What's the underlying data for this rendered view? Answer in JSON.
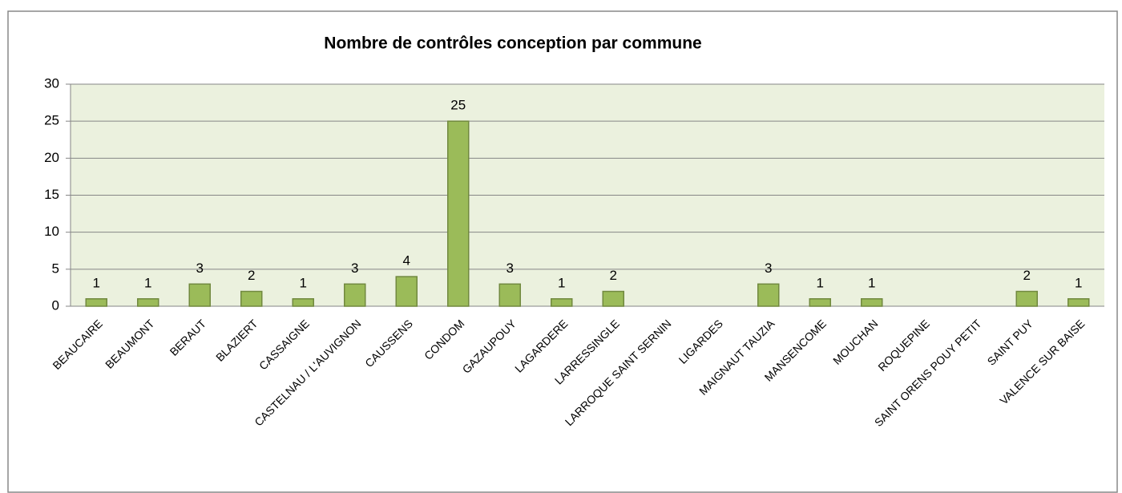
{
  "chart_data": {
    "type": "bar",
    "title": "Nombre de contrôles conception par commune",
    "categories": [
      "BEAUCAIRE",
      "BEAUMONT",
      "BERAUT",
      "BLAZIERT",
      "CASSAIGNE",
      "CASTELNAU / L'AUVIGNON",
      "CAUSSENS",
      "CONDOM",
      "GAZAUPOUY",
      "LAGARDERE",
      "LARRESSINGLE",
      "LARROQUE SAINT SERNIN",
      "LIGARDES",
      "MAIGNAUT TAUZIA",
      "MANSENCOME",
      "MOUCHAN",
      "ROQUEPINE",
      "SAINT ORENS POUY PETIT",
      "SAINT PUY",
      "VALENCE SUR BAISE"
    ],
    "values": [
      1,
      1,
      3,
      2,
      1,
      3,
      4,
      25,
      3,
      1,
      2,
      null,
      null,
      3,
      1,
      1,
      null,
      null,
      2,
      1
    ],
    "color": "#9bbb59",
    "ylim": [
      0,
      30
    ],
    "yticks": [
      0,
      5,
      10,
      15,
      20,
      25,
      30
    ],
    "grid": true
  }
}
